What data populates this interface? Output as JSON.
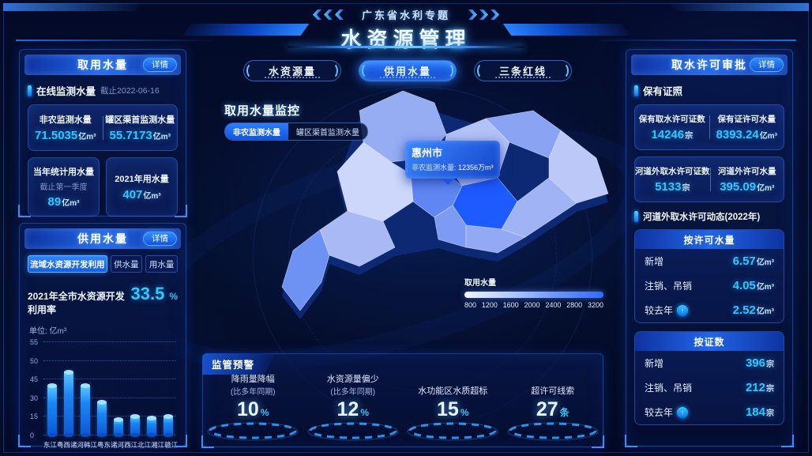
{
  "header": {
    "kicker": "广东省水利专题",
    "title": "水资源管理"
  },
  "colors": {
    "accent": "#2f8dff",
    "value_cyan": "#2fc8ff",
    "panel_border": "#2d64dc",
    "map_highlight": "#1e5bff"
  },
  "intake_panel": {
    "title": "取用水量",
    "detail": "详情",
    "online_label": "在线监测水量",
    "online_asof": "截止2022-06-16",
    "pair": [
      {
        "label": "非农监测水量",
        "value": "71.5035",
        "unit": "亿m³"
      },
      {
        "label": "罐区渠首监测水量",
        "value": "55.7173",
        "unit": "亿m³"
      }
    ],
    "cards": [
      {
        "label": "当年统计用水量",
        "sub": "截止第一季度",
        "value": "89",
        "unit": "亿m³"
      },
      {
        "label": "2021年用水量",
        "value": "407",
        "unit": "亿m³"
      }
    ]
  },
  "supply_panel": {
    "title": "供用水量",
    "detail": "详情",
    "tabs": [
      "流域水资源开发利用",
      "供水量",
      "用水量"
    ],
    "headline_label": "2021年全市水资源开发利用率",
    "headline_value": "33.5",
    "headline_unit": "%",
    "unit_label": "单位: 亿m³",
    "legend": "各流域开发利用率"
  },
  "chart_data": {
    "type": "bar",
    "title": "各流域开发利用率",
    "ylabel": "亿m³",
    "categories": [
      "东江",
      "粤西诸河",
      "韩江",
      "粤东诸河",
      "西江",
      "北江",
      "湘江",
      "赣江"
    ],
    "values": [
      40,
      47,
      40,
      27,
      13,
      15,
      14,
      15
    ],
    "ytick_values": [
      0,
      15,
      30,
      45,
      50,
      55
    ],
    "grid": "dotted",
    "legend_position": "bottom"
  },
  "center_tabs": [
    "水资源量",
    "供用水量",
    "三条红线"
  ],
  "map": {
    "title": "取用水量监控",
    "legend_tabs": [
      "非农监测水量",
      "罐区渠首监测水量"
    ],
    "tooltip_city": "惠州市",
    "tooltip_label": "非农监测水量: ",
    "tooltip_value": "12356万m³",
    "scale_label": "取用水量",
    "scale_ticks": [
      "800",
      "1200",
      "1600",
      "2000",
      "2400",
      "2800",
      "3200"
    ]
  },
  "alerts": {
    "title": "监管预警",
    "items": [
      {
        "label": "降雨量降幅",
        "sub": "(比多年同期)",
        "value": "10",
        "unit": "%"
      },
      {
        "label": "水资源量偏少",
        "sub": "(比多年同期)",
        "value": "12",
        "unit": "%"
      },
      {
        "label": "水功能区水质超标",
        "sub": "",
        "value": "15",
        "unit": "%"
      },
      {
        "label": "超许可线索",
        "sub": "",
        "value": "27",
        "unit": "条"
      }
    ]
  },
  "permit_panel": {
    "title": "取水许可审批",
    "detail": "详情",
    "section1": "保有证照",
    "cards": [
      {
        "a_label": "保有取水许可证数",
        "a_value": "14246",
        "a_unit": "宗",
        "b_label": "保有证许可水量",
        "b_value": "8393.24",
        "b_unit": "亿m³"
      },
      {
        "a_label": "河道外取水许可证数",
        "a_value": "5133",
        "a_unit": "宗",
        "b_label": "河道外许可水量",
        "b_value": "395.09",
        "b_unit": "亿m³"
      }
    ],
    "section2": "河道外取水许可动态(2022年)",
    "groups": [
      {
        "title": "按许可水量",
        "rows": [
          {
            "label": "新增",
            "value": "6.57",
            "unit": "亿m³"
          },
          {
            "label": "注销、吊销",
            "value": "4.05",
            "unit": "亿m³"
          },
          {
            "label": "较去年",
            "value": "2.52",
            "unit": "亿m³",
            "up": true
          }
        ]
      },
      {
        "title": "按证数",
        "rows": [
          {
            "label": "新增",
            "value": "396",
            "unit": "宗"
          },
          {
            "label": "注销、吊销",
            "value": "212",
            "unit": "宗"
          },
          {
            "label": "较去年",
            "value": "184",
            "unit": "宗",
            "up": true
          }
        ]
      }
    ]
  }
}
